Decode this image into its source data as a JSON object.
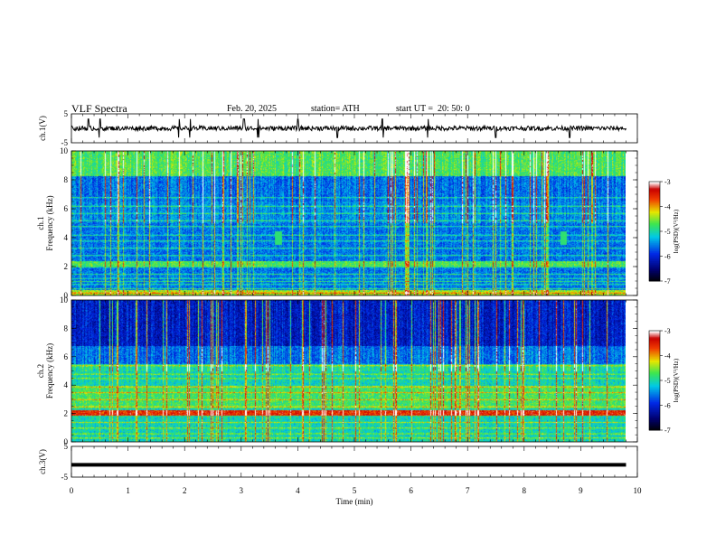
{
  "header": {
    "title": "VLF Spectra",
    "date": "Feb. 20, 2025",
    "station": "station= ATH",
    "start": "start UT =  20: 50: 0"
  },
  "chart_data": [
    {
      "type": "line",
      "panel": "ch1-waveform",
      "ylabel": "ch.1(V)",
      "ylim": [
        -5,
        5
      ],
      "yticks": [
        "5",
        "-5"
      ],
      "x_range_min": [
        0,
        9.8
      ],
      "baseline_v": 0.0,
      "noise_amplitude_v": 0.8,
      "spike_times_min": [
        0.3,
        0.5,
        1.9,
        2.1,
        3.05,
        3.3,
        4.0,
        4.7,
        5.5,
        6.3,
        7.5,
        8.8
      ]
    },
    {
      "type": "heatmap",
      "panel": "ch1-spectrogram",
      "ylabel": "ch.1",
      "ylabel2": "Frequency (kHz)",
      "ylim": [
        0,
        10
      ],
      "yticks": [
        "0",
        "2",
        "4",
        "6",
        "8",
        "10"
      ],
      "x_range_min": [
        0,
        9.8
      ],
      "colorbar": {
        "label": "log(PSD)(V²/Hz)",
        "range": [
          -7,
          -3
        ],
        "ticks": [
          "-3",
          "-4",
          "-5",
          "-6",
          "-7"
        ]
      },
      "bands_khz": [
        0.2,
        0.5,
        0.8,
        1.0,
        1.2,
        1.5,
        2.0,
        2.2,
        2.8,
        3.3,
        3.8,
        4.2,
        4.8,
        5.2,
        5.7,
        6.2,
        6.8
      ],
      "features": [
        "broadband spherics extending to 10 kHz",
        "whistler-like bursts near 3.65 min and 8.7 min at ~4 kHz"
      ]
    },
    {
      "type": "heatmap",
      "panel": "ch2-spectrogram",
      "ylabel": "ch.2",
      "ylabel2": "Frequency (kHz)",
      "ylim": [
        0,
        10
      ],
      "yticks": [
        "0",
        "2",
        "4",
        "6",
        "8",
        "10"
      ],
      "x_range_min": [
        0,
        9.8
      ],
      "colorbar": {
        "label": "log(PSD)(V²/Hz)",
        "range": [
          -7,
          -3
        ],
        "ticks": [
          "-3",
          "-4",
          "-5",
          "-6",
          "-7"
        ]
      },
      "bands_khz": [
        0.3,
        0.6,
        1.0,
        1.4,
        1.9,
        2.1,
        2.5,
        3.0,
        3.5,
        3.9,
        4.5,
        4.8,
        5.4
      ],
      "features": [
        "strong emission band near 2 kHz",
        "broadband spherics extending to 10 kHz"
      ]
    },
    {
      "type": "line",
      "panel": "ch3-waveform",
      "ylabel": "ch.3(V)",
      "ylim": [
        -5,
        5
      ],
      "yticks": [
        "5",
        "-5"
      ],
      "x_range_min": [
        0,
        9.8
      ],
      "baseline_v": -1.0
    }
  ],
  "x_axis": {
    "label": "Time (min)",
    "ticks": [
      "0",
      "1",
      "2",
      "3",
      "4",
      "5",
      "6",
      "7",
      "8",
      "9",
      "10"
    ]
  }
}
